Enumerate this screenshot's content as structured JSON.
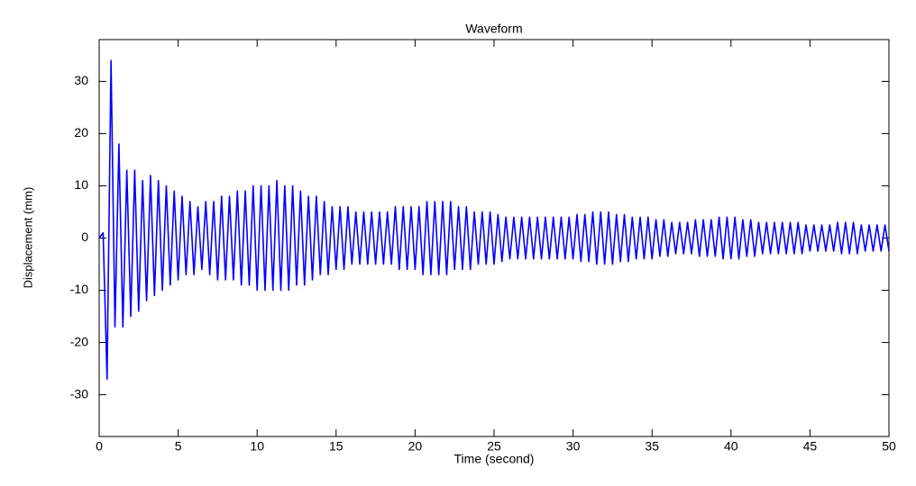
{
  "chart_data": {
    "type": "line",
    "title": "Waveform",
    "x_label": "Time (second)",
    "y_label": "Displacement (mm)",
    "color": "#0000ff",
    "grid": false,
    "xlim": [
      0,
      50
    ],
    "ylim": [
      -38,
      38
    ],
    "xticks": [
      0,
      5,
      10,
      15,
      20,
      25,
      30,
      35,
      40,
      45,
      50
    ],
    "yticks": [
      -30,
      -20,
      -10,
      0,
      10,
      20,
      30
    ],
    "x": [
      0,
      0.25,
      0.5,
      0.75,
      1,
      1.25,
      1.5,
      1.75,
      2,
      2.25,
      2.5,
      2.75,
      3,
      3.25,
      3.5,
      3.75,
      4,
      4.25,
      4.5,
      4.75,
      5,
      5.25,
      5.5,
      5.75,
      6,
      6.25,
      6.5,
      6.75,
      7,
      7.25,
      7.5,
      7.75,
      8,
      8.25,
      8.5,
      8.75,
      9,
      9.25,
      9.5,
      9.75,
      10,
      10.25,
      10.5,
      10.75,
      11,
      11.25,
      11.5,
      11.75,
      12,
      12.25,
      12.5,
      12.75,
      13,
      13.25,
      13.5,
      13.75,
      14,
      14.25,
      14.5,
      14.75,
      15,
      15.25,
      15.5,
      15.75,
      16,
      16.25,
      16.5,
      16.75,
      17,
      17.25,
      17.5,
      17.75,
      18,
      18.25,
      18.5,
      18.75,
      19,
      19.25,
      19.5,
      19.75,
      20,
      20.25,
      20.5,
      20.75,
      21,
      21.25,
      21.5,
      21.75,
      22,
      22.25,
      22.5,
      22.75,
      23,
      23.25,
      23.5,
      23.75,
      24,
      24.25,
      24.5,
      24.75,
      25,
      25.25,
      25.5,
      25.75,
      26,
      26.25,
      26.5,
      26.75,
      27,
      27.25,
      27.5,
      27.75,
      28,
      28.25,
      28.5,
      28.75,
      29,
      29.25,
      29.5,
      29.75,
      30,
      30.25,
      30.5,
      30.75,
      31,
      31.25,
      31.5,
      31.75,
      32,
      32.25,
      32.5,
      32.75,
      33,
      33.25,
      33.5,
      33.75,
      34,
      34.25,
      34.5,
      34.75,
      35,
      35.25,
      35.5,
      35.75,
      36,
      36.25,
      36.5,
      36.75,
      37,
      37.25,
      37.5,
      37.75,
      38,
      38.25,
      38.5,
      38.75,
      39,
      39.25,
      39.5,
      39.75,
      40,
      40.25,
      40.5,
      40.75,
      41,
      41.25,
      41.5,
      41.75,
      42,
      42.25,
      42.5,
      42.75,
      43,
      43.25,
      43.5,
      43.75,
      44,
      44.25,
      44.5,
      44.75,
      45,
      45.25,
      45.5,
      45.75,
      46,
      46.25,
      46.5,
      46.75,
      47,
      47.25,
      47.5,
      47.75,
      48,
      48.25,
      48.5,
      48.75,
      49,
      49.25,
      49.5,
      49.75,
      50
    ],
    "values": [
      0,
      1,
      -27,
      34,
      -17,
      18,
      -17,
      13,
      -15,
      13,
      -14,
      11,
      -12,
      12,
      -11,
      11,
      -10,
      10,
      -9,
      9,
      -8,
      8,
      -7,
      7,
      -7,
      6,
      -6,
      7,
      -7,
      7,
      -8,
      8,
      -8,
      8,
      -8,
      9,
      -9,
      9,
      -9,
      10,
      -10,
      10,
      -10,
      10,
      -10,
      11,
      -10,
      10,
      -10,
      10,
      -9,
      9,
      -9,
      8,
      -8,
      8,
      -7,
      7,
      -7,
      6,
      -6,
      6,
      -6,
      6,
      -5,
      5,
      -5,
      5,
      -5,
      5,
      -5,
      5,
      -5,
      5,
      -5,
      6,
      -6,
      6,
      -6,
      6,
      -6,
      6,
      -7,
      7,
      -7,
      7,
      -7,
      7,
      -7,
      7,
      -6,
      6,
      -6,
      6,
      -6,
      5,
      -5,
      5,
      -5,
      5,
      -5,
      4.5,
      -4.5,
      4,
      -4,
      4,
      -4,
      4,
      -4,
      4,
      -4,
      4,
      -4,
      4,
      -4,
      4,
      -4,
      4,
      -4,
      4,
      -4,
      4.5,
      -4.5,
      4.5,
      -4.5,
      5,
      -5,
      5,
      -5,
      5,
      -5,
      4.5,
      -4.5,
      4.5,
      -4.5,
      4,
      -4,
      4,
      -4,
      4,
      -4,
      3.5,
      -3.5,
      3.5,
      -3.5,
      3,
      -3,
      3,
      -3,
      3,
      -3,
      3.5,
      -3.5,
      3.5,
      -3.5,
      3.5,
      -3.5,
      4,
      -4,
      4,
      -4,
      4,
      -4,
      3.5,
      -3.5,
      3.5,
      -3.5,
      3,
      -3,
      3,
      -3,
      3,
      -3,
      3,
      -3,
      3,
      -3,
      3,
      -3,
      2.5,
      -2.5,
      2.5,
      -2.5,
      2.5,
      -2.5,
      2.5,
      -2.5,
      3,
      -3,
      3,
      -3,
      3,
      -3,
      2.5,
      -2.5,
      2.5,
      -2.5,
      2.5,
      -2.5,
      2.5,
      -2.5
    ]
  }
}
